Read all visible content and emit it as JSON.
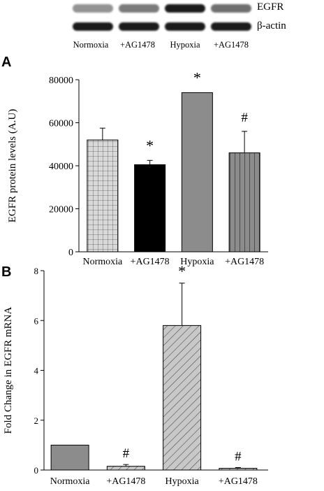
{
  "western_blot": {
    "bands": [
      {
        "label": "EGFR",
        "intensities": [
          0.45,
          0.55,
          0.95,
          0.6
        ]
      },
      {
        "label": "β-actin",
        "intensities": [
          0.95,
          0.95,
          0.95,
          0.95
        ]
      }
    ],
    "lanes": [
      "Normoxia",
      "+AG1478",
      "Hypoxia",
      "+AG1478"
    ]
  },
  "chart_data": [
    {
      "panel": "A",
      "type": "bar",
      "ylabel": "EGFR protein levels (A.U)",
      "categories": [
        "Normoxia",
        "+AG1478",
        "Hypoxia",
        "+AG1478"
      ],
      "values": [
        52000,
        40500,
        74000,
        46000
      ],
      "errors": [
        5500,
        2000,
        0,
        10000
      ],
      "annotations": [
        "",
        "*",
        "*",
        "#"
      ],
      "ylim": [
        0,
        80000
      ],
      "yticks": [
        0,
        20000,
        40000,
        60000,
        80000
      ],
      "fill_styles": [
        "grid-pattern",
        "solid-black",
        "solid-gray",
        "vertical-stripes"
      ],
      "colors": {
        "bar_gray": "#8c8c8c",
        "black": "#000000",
        "grid_fill": "#d0d0d0"
      }
    },
    {
      "panel": "B",
      "type": "bar",
      "ylabel": "Fold Change in EGFR mRNA",
      "categories": [
        "Normoxia",
        "+AG1478",
        "Hypoxia",
        "+AG1478"
      ],
      "values": [
        1.0,
        0.15,
        5.8,
        0.07
      ],
      "errors": [
        0,
        0.07,
        1.7,
        0.03
      ],
      "annotations": [
        "",
        "#",
        "*",
        "#"
      ],
      "ylim": [
        0,
        8
      ],
      "yticks": [
        0,
        2,
        4,
        6,
        8
      ],
      "fill_styles": [
        "solid-gray",
        "diagonal-hatch",
        "diagonal-hatch",
        "diagonal-hatch"
      ],
      "colors": {
        "bar_gray": "#8c8c8c",
        "hatch_bg": "#c8c8c8"
      }
    }
  ]
}
